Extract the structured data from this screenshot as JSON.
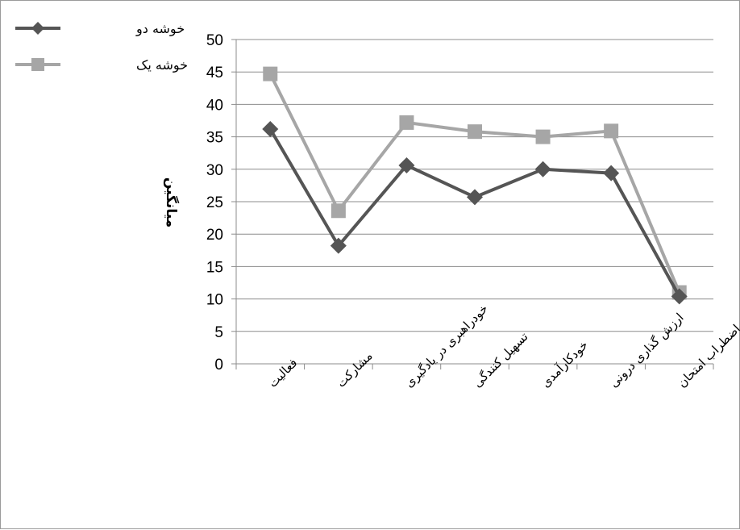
{
  "chart_data": {
    "type": "line",
    "title": "",
    "xlabel": "",
    "ylabel": "میانگین",
    "ylim": [
      0,
      50
    ],
    "ytick_step": 5,
    "grid": true,
    "legend_position": "top-left",
    "categories": [
      "فعالیت",
      "مشارکت",
      "خودراهبری در یادگیری",
      "تسهیل کنندگی",
      "خودکارآمدی",
      "ارزش گذاری درونی",
      "اضطراب امتحان"
    ],
    "series": [
      {
        "name": "خوشه دو",
        "color": "#555555",
        "marker": "diamond",
        "values": [
          36.2,
          18.2,
          30.6,
          25.7,
          30.0,
          29.4,
          10.4
        ]
      },
      {
        "name": "خوشه یک",
        "color": "#a6a6a6",
        "marker": "square",
        "values": [
          44.7,
          23.6,
          37.2,
          35.8,
          35.0,
          35.9,
          11.0
        ]
      }
    ]
  }
}
